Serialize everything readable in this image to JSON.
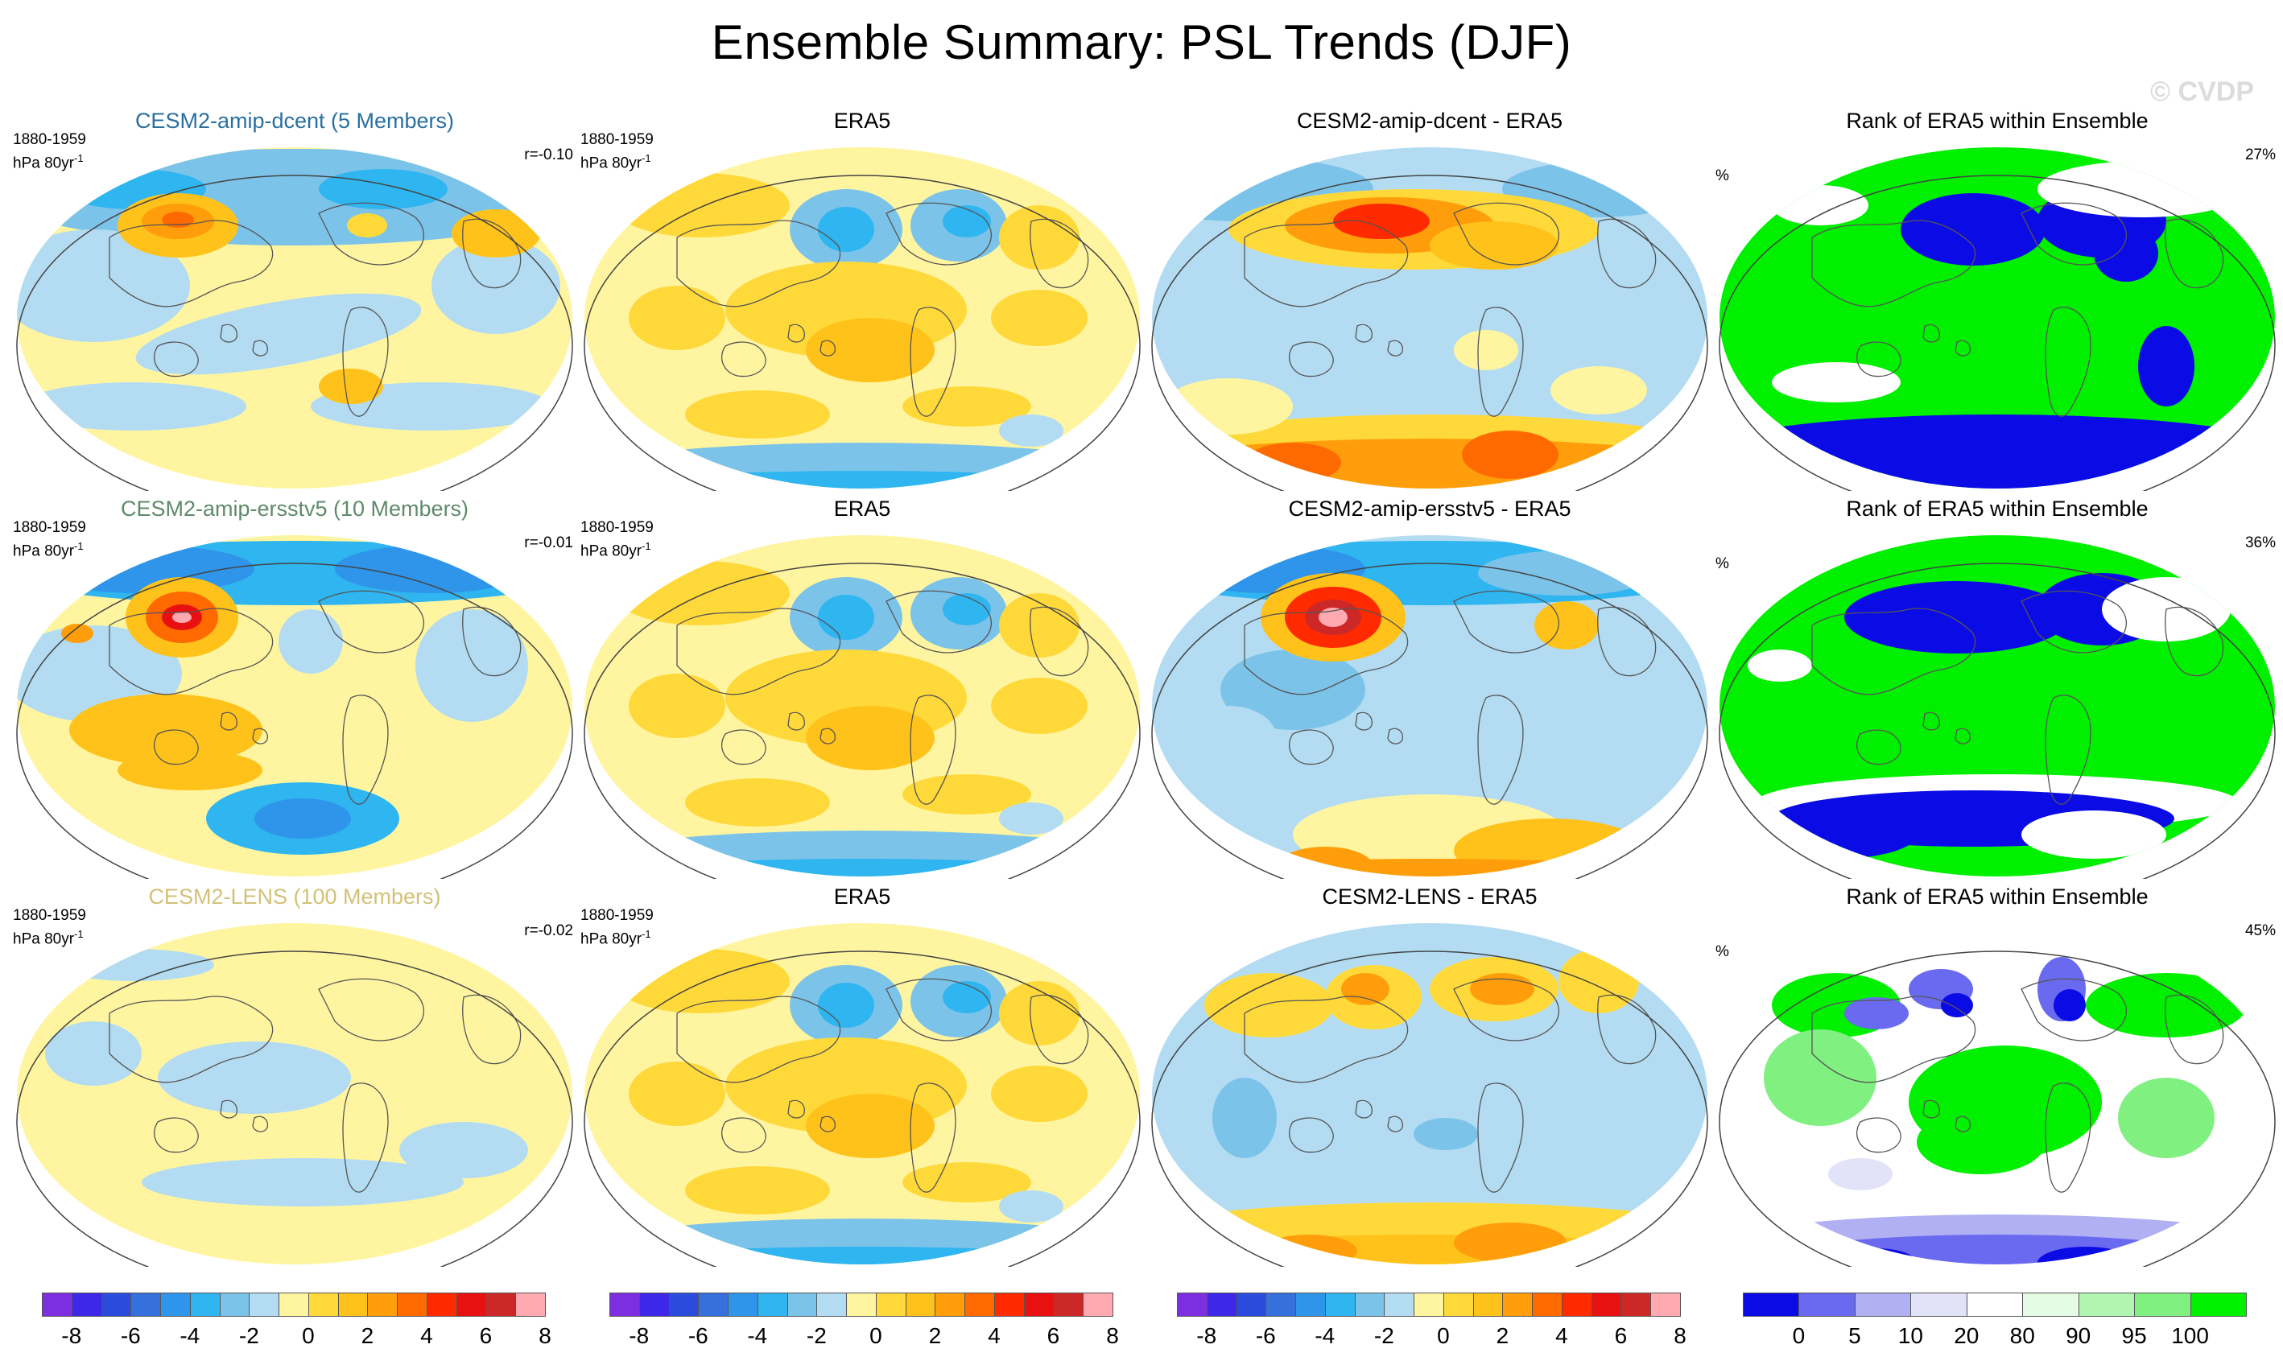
{
  "title": "Ensemble Summary: PSL Trends (DJF)",
  "watermark": "© CVDP",
  "colors": {
    "diverging": [
      "#7d2ee0",
      "#3c28e6",
      "#2a4bdc",
      "#3670dc",
      "#2f95ea",
      "#2fb5f0",
      "#7cc3ea",
      "#b3dcf2",
      "#fff5a0",
      "#ffd93a",
      "#ffc21a",
      "#ff9e0a",
      "#ff6a00",
      "#ff2a00",
      "#e81010",
      "#cc2828",
      "#ffaab0"
    ],
    "rank": [
      "#0b0be6",
      "#6a6af0",
      "#b0b0f2",
      "#e2e2f8",
      "#ffffff",
      "#e4fbe4",
      "#b2f5b2",
      "#80f080",
      "#00f000"
    ]
  },
  "rows": [
    {
      "model": {
        "title": "CESM2-amip-dcent (5 Members)",
        "title_color": "#2a6fa0",
        "period": "1880-1959",
        "units": "hPa 80yr",
        "units_sup": "-1",
        "r": "r=-0.10"
      },
      "obs": {
        "title": "ERA5",
        "period": "1880-1959",
        "units": "hPa 80yr",
        "units_sup": "-1"
      },
      "diff": {
        "title": "CESM2-amip-dcent - ERA5"
      },
      "rank": {
        "title": "Rank of ERA5 within Ensemble",
        "unit": "%",
        "pct": "27%"
      }
    },
    {
      "model": {
        "title": "CESM2-amip-ersstv5 (10 Members)",
        "title_color": "#5f8a6a",
        "period": "1880-1959",
        "units": "hPa 80yr",
        "units_sup": "-1",
        "r": "r=-0.01"
      },
      "obs": {
        "title": "ERA5",
        "period": "1880-1959",
        "units": "hPa 80yr",
        "units_sup": "-1"
      },
      "diff": {
        "title": "CESM2-amip-ersstv5 - ERA5"
      },
      "rank": {
        "title": "Rank of ERA5 within Ensemble",
        "unit": "%",
        "pct": "36%"
      }
    },
    {
      "model": {
        "title": "CESM2-LENS (100 Members)",
        "title_color": "#d2c277",
        "period": "1880-1959",
        "units": "hPa 80yr",
        "units_sup": "-1",
        "r": "r=-0.02"
      },
      "obs": {
        "title": "ERA5",
        "period": "1880-1959",
        "units": "hPa 80yr",
        "units_sup": "-1"
      },
      "diff": {
        "title": "CESM2-LENS - ERA5"
      },
      "rank": {
        "title": "Rank of ERA5 within Ensemble",
        "unit": "%",
        "pct": "45%"
      }
    }
  ],
  "colorbars": {
    "trend_labels": [
      "-8",
      "-6",
      "-4",
      "-2",
      "0",
      "2",
      "4",
      "6",
      "8"
    ],
    "rank_labels": [
      "0",
      "5",
      "10",
      "20",
      "80",
      "90",
      "95",
      "100"
    ]
  },
  "chart_data": {
    "type": "heatmap",
    "title": "Ensemble Summary: PSL Trends (DJF)",
    "variable": "PSL",
    "season": "DJF",
    "period": "1880-1959",
    "units": "hPa 80yr-1",
    "trend_levels": [
      -8,
      -7,
      -6,
      -5,
      -4,
      -3,
      -2,
      -1,
      0,
      1,
      2,
      3,
      4,
      5,
      6,
      7,
      8
    ],
    "rank_levels": [
      0,
      5,
      10,
      20,
      80,
      90,
      95,
      100
    ],
    "pattern_correlations": [
      {
        "model": "CESM2-amip-dcent",
        "members": 5,
        "r": -0.1,
        "rank_pct": 27
      },
      {
        "model": "CESM2-amip-ersstv5",
        "members": 10,
        "r": -0.01,
        "rank_pct": 36
      },
      {
        "model": "CESM2-LENS",
        "members": 100,
        "r": -0.02,
        "rank_pct": 45
      }
    ]
  }
}
